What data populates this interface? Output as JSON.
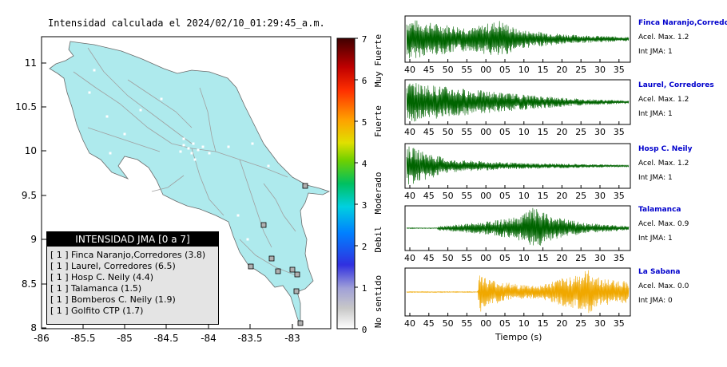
{
  "map": {
    "title": "Intensidad calculada el 2024/02/10_01:29:45_a.m.",
    "x_ticks": [
      "-86",
      "-85.5",
      "-85",
      "-84.5",
      "-84",
      "-83.5",
      "-83"
    ],
    "y_ticks": [
      "11",
      "10.5",
      "10",
      "9.5",
      "9",
      "8.5",
      "8"
    ],
    "land_color": "#aeeaed",
    "colorbar": {
      "ticks": [
        "7",
        "6",
        "5",
        "4",
        "3",
        "2",
        "1",
        "0"
      ],
      "categories": [
        "Muy Fuerte",
        "Fuerte",
        "Moderado",
        "Debil",
        "No sentido"
      ]
    },
    "legend": {
      "title": "INTENSIDAD JMA [0 a 7]",
      "items": [
        {
          "badge": "[ 1 ]",
          "label": "Finca Naranjo,Corredores (3.8)"
        },
        {
          "badge": "[ 1 ]",
          "label": "Laurel, Corredores (6.5)"
        },
        {
          "badge": "[ 1 ]",
          "label": "Hosp C. Neily (4.4)"
        },
        {
          "badge": "[ 1 ]",
          "label": "Talamanca (1.5)"
        },
        {
          "badge": "[ 1 ]",
          "label": "Bomberos C. Neily (1.9)"
        },
        {
          "badge": "[ 1 ]",
          "label": "Golfito CTP (1.7)"
        }
      ]
    }
  },
  "waveforms": {
    "x_ticks": [
      "40",
      "45",
      "50",
      "55",
      "00",
      "05",
      "10",
      "15",
      "20",
      "25",
      "30",
      "35"
    ],
    "xlabel": "Tiempo (s)",
    "stations": [
      {
        "name": "Finca Naranjo,Corredor",
        "accel": "Acel. Max. 1.2",
        "jma": "Int JMA: 1",
        "color": "#006400"
      },
      {
        "name": "Laurel, Corredores",
        "accel": "Acel. Max. 1.2",
        "jma": "Int JMA: 1",
        "color": "#006400"
      },
      {
        "name": "Hosp C. Neily",
        "accel": "Acel. Max. 1.2",
        "jma": "Int JMA: 1",
        "color": "#006400"
      },
      {
        "name": "Talamanca",
        "accel": "Acel. Max. 0.9",
        "jma": "Int JMA: 1",
        "color": "#006400"
      },
      {
        "name": "La Sabana",
        "accel": "Acel. Max. 0.0",
        "jma": "Int JMA: 0",
        "color": "#f0a800"
      }
    ]
  }
}
